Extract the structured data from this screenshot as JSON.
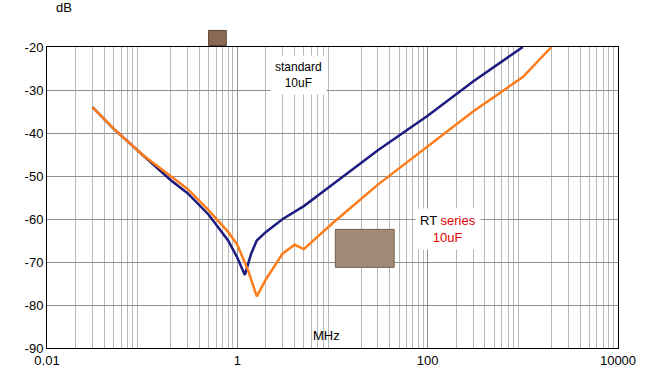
{
  "chart_data": {
    "type": "line",
    "x_label": "MHz",
    "y_label": "dB",
    "log": "x",
    "grid": true,
    "xlim": [
      0.01,
      10000
    ],
    "xticks": [
      0.01,
      1,
      100,
      10000
    ],
    "ylim": [
      -90,
      -20
    ],
    "yticks": [
      -90,
      -80,
      -70,
      -60,
      -50,
      -40,
      -30,
      -20
    ],
    "annotations": [
      [
        "standard",
        "10uF"
      ],
      [
        "RT series",
        "10uF"
      ]
    ],
    "series": [
      {
        "name": "standard 10uF",
        "color": "#1c1c80",
        "x": [
          0.03,
          0.05,
          0.1,
          0.2,
          0.3,
          0.5,
          0.8,
          1.0,
          1.2,
          1.4,
          1.6,
          2,
          3,
          5,
          10,
          30,
          100,
          300,
          1000
        ],
        "values": [
          -34,
          -39,
          -45,
          -51,
          -54,
          -59,
          -65,
          -69,
          -73,
          -68,
          -65,
          -63,
          -60,
          -57,
          -52,
          -44,
          -36,
          -28,
          -20
        ]
      },
      {
        "name": "RT series 10uF",
        "color": "#ff7c1a",
        "x": [
          0.03,
          0.05,
          0.1,
          0.2,
          0.3,
          0.5,
          0.8,
          1.0,
          1.3,
          1.6,
          2,
          3,
          4,
          5,
          7,
          10,
          30,
          100,
          300,
          1000,
          2000
        ],
        "values": [
          -34,
          -39,
          -45,
          -50,
          -53,
          -58,
          -63,
          -66,
          -72,
          -78,
          -74,
          -68,
          -66,
          -67,
          -64,
          -61,
          -52,
          -43,
          -35,
          -27,
          -20
        ]
      }
    ]
  }
}
